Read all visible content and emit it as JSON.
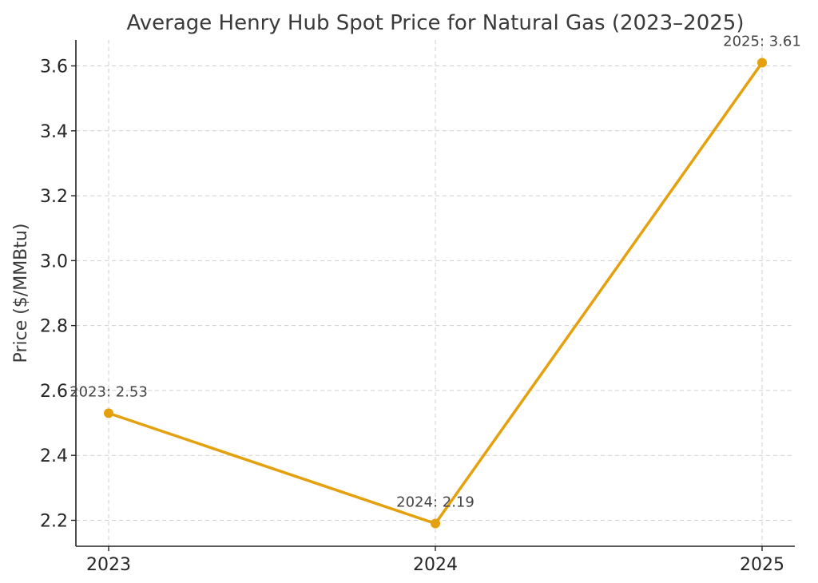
{
  "chart_data": {
    "type": "line",
    "title": "Average Henry Hub Spot Price for Natural Gas (2023–2025)",
    "xlabel": "",
    "ylabel": "Price ($/MMBtu)",
    "x": [
      "2023",
      "2024",
      "2025"
    ],
    "series": [
      {
        "values": [
          2.53,
          2.19,
          3.61
        ],
        "point_labels": [
          "2023: 2.53",
          "2024: 2.19",
          "2025: 3.61"
        ],
        "color": "#e5a00d"
      }
    ],
    "yticks": [
      "2.2",
      "2.4",
      "2.6",
      "2.8",
      "3.0",
      "3.2",
      "3.4",
      "3.6"
    ],
    "ylim": [
      2.12,
      3.68
    ],
    "grid": true,
    "legend": "none"
  }
}
